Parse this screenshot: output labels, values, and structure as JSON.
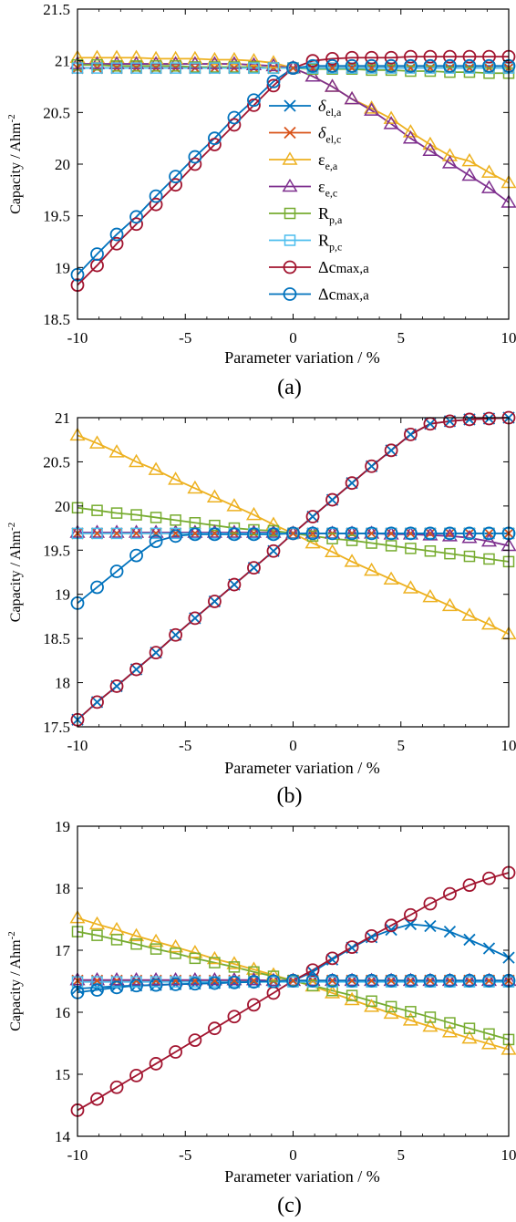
{
  "chart_data": [
    {
      "type": "line",
      "caption": "(a)",
      "xlabel": "Parameter variation / %",
      "ylabel": "Capacity / Ahm",
      "ylabel_sup": "-2",
      "xlim": [
        -10,
        10
      ],
      "ylim": [
        18.5,
        21.5
      ],
      "x_ticks": [
        -10,
        -5,
        0,
        5,
        10
      ],
      "x_tick_labels": [
        "-10",
        "-5",
        "0",
        "5",
        "10"
      ],
      "y_ticks": [
        18.5,
        19,
        19.5,
        20,
        20.5,
        21,
        21.5
      ],
      "y_tick_labels": [
        "18.5",
        "19",
        "19.5",
        "20",
        "20.5",
        "21",
        "21.5"
      ],
      "legend_position": "center",
      "x": [
        -10,
        -9.09,
        -8.18,
        -7.27,
        -6.36,
        -5.45,
        -4.55,
        -3.64,
        -2.73,
        -1.82,
        -0.91,
        0,
        0.91,
        1.82,
        2.73,
        3.64,
        4.55,
        5.45,
        6.36,
        7.27,
        8.18,
        9.09,
        10
      ],
      "series": [
        {
          "name": "δel,a",
          "label_main": "δ",
          "label_sub": "el,a",
          "color": "#0072BD",
          "marker": "x",
          "values": [
            20.93,
            20.93,
            20.93,
            20.93,
            20.93,
            20.93,
            20.93,
            20.93,
            20.93,
            20.93,
            20.93,
            20.93,
            20.93,
            20.93,
            20.93,
            20.93,
            20.93,
            20.93,
            20.93,
            20.93,
            20.93,
            20.93,
            20.93
          ]
        },
        {
          "name": "δel,c",
          "label_main": "δ",
          "label_sub": "el,c",
          "color": "#D95319",
          "marker": "x",
          "values": [
            20.93,
            20.93,
            20.93,
            20.93,
            20.93,
            20.93,
            20.93,
            20.93,
            20.93,
            20.93,
            20.93,
            20.93,
            20.93,
            20.93,
            20.93,
            20.93,
            20.93,
            20.93,
            20.93,
            20.93,
            20.93,
            20.93,
            20.93
          ]
        },
        {
          "name": "εe,a",
          "label_main": "ε",
          "label_sub": "e,a",
          "color": "#EDB120",
          "marker": "triangle",
          "values": [
            21.03,
            21.03,
            21.03,
            21.03,
            21.02,
            21.02,
            21.02,
            21.01,
            21.01,
            21.0,
            20.98,
            20.93,
            20.85,
            20.75,
            20.63,
            20.54,
            20.44,
            20.31,
            20.19,
            20.08,
            20.03,
            19.92,
            19.82
          ]
        },
        {
          "name": "εe,c",
          "label_main": "ε",
          "label_sub": "e,c",
          "color": "#7E2F8E",
          "marker": "triangle",
          "values": [
            20.97,
            20.97,
            20.97,
            20.97,
            20.97,
            20.97,
            20.97,
            20.97,
            20.97,
            20.96,
            20.95,
            20.93,
            20.85,
            20.75,
            20.63,
            20.52,
            20.39,
            20.25,
            20.13,
            20.01,
            19.89,
            19.77,
            19.63
          ]
        },
        {
          "name": "Rp,a",
          "label_main": "R",
          "label_sub": "p,a",
          "color": "#77AC30",
          "marker": "square",
          "values": [
            20.96,
            20.96,
            20.95,
            20.95,
            20.95,
            20.95,
            20.94,
            20.94,
            20.94,
            20.94,
            20.93,
            20.93,
            20.92,
            20.92,
            20.92,
            20.91,
            20.91,
            20.9,
            20.9,
            20.89,
            20.89,
            20.88,
            20.88
          ]
        },
        {
          "name": "Rp,c",
          "label_main": "R",
          "label_sub": "p,c",
          "color": "#4DBEEE",
          "marker": "square",
          "values": [
            20.93,
            20.93,
            20.93,
            20.93,
            20.93,
            20.93,
            20.93,
            20.93,
            20.93,
            20.93,
            20.93,
            20.93,
            20.93,
            20.93,
            20.93,
            20.93,
            20.93,
            20.93,
            20.93,
            20.93,
            20.93,
            20.93,
            20.93
          ]
        },
        {
          "name": "Δcmax,a",
          "label_main": "Δc",
          "label_sub": "max,a",
          "color": "#A2142F",
          "marker": "circle",
          "values": [
            18.83,
            19.02,
            19.23,
            19.42,
            19.61,
            19.8,
            20.0,
            20.19,
            20.38,
            20.57,
            20.76,
            20.93,
            21.0,
            21.02,
            21.03,
            21.03,
            21.03,
            21.04,
            21.04,
            21.04,
            21.04,
            21.04,
            21.04
          ]
        },
        {
          "name": "Δcmax,a",
          "label_main": "Δc",
          "label_sub": "max,a",
          "color": "#0072BD",
          "marker": "circle",
          "values": [
            18.93,
            19.13,
            19.32,
            19.49,
            19.69,
            19.88,
            20.07,
            20.25,
            20.45,
            20.62,
            20.8,
            20.93,
            20.95,
            20.95,
            20.95,
            20.95,
            20.95,
            20.95,
            20.95,
            20.95,
            20.95,
            20.95,
            20.95
          ]
        }
      ]
    },
    {
      "type": "line",
      "caption": "(b)",
      "xlabel": "Parameter variation / %",
      "ylabel": "Capacity / Ahm",
      "ylabel_sup": "-2",
      "xlim": [
        -10,
        10
      ],
      "ylim": [
        17.5,
        21
      ],
      "x_ticks": [
        -10,
        -5,
        0,
        5,
        10
      ],
      "x_tick_labels": [
        "-10",
        "-5",
        "0",
        "5",
        "10"
      ],
      "y_ticks": [
        17.5,
        18,
        18.5,
        19,
        19.5,
        20,
        20.5,
        21
      ],
      "y_tick_labels": [
        "17.5",
        "18",
        "18.5",
        "19",
        "19.5",
        "20",
        "20.5",
        "21"
      ],
      "x": [
        -10,
        -9.09,
        -8.18,
        -7.27,
        -6.36,
        -5.45,
        -4.55,
        -3.64,
        -2.73,
        -1.82,
        -0.91,
        0,
        0.91,
        1.82,
        2.73,
        3.64,
        4.55,
        5.45,
        6.36,
        7.27,
        8.18,
        9.09,
        10
      ],
      "series": [
        {
          "name": "δel,a",
          "color": "#0072BD",
          "marker": "x",
          "values": [
            17.58,
            17.78,
            17.96,
            18.15,
            18.34,
            18.54,
            18.73,
            18.92,
            19.11,
            19.3,
            19.49,
            19.69,
            19.88,
            20.07,
            20.26,
            20.45,
            20.63,
            20.81,
            20.93,
            20.96,
            20.98,
            20.99,
            21.0
          ]
        },
        {
          "name": "δel,c",
          "color": "#D95319",
          "marker": "x",
          "values": [
            19.69,
            19.69,
            19.69,
            19.69,
            19.69,
            19.69,
            19.69,
            19.69,
            19.69,
            19.69,
            19.69,
            19.69,
            19.69,
            19.69,
            19.69,
            19.69,
            19.69,
            19.69,
            19.69,
            19.69,
            19.69,
            19.69,
            19.69
          ]
        },
        {
          "name": "εe,a",
          "color": "#EDB120",
          "marker": "triangle",
          "values": [
            20.8,
            20.71,
            20.61,
            20.5,
            20.41,
            20.3,
            20.2,
            20.1,
            20.0,
            19.9,
            19.79,
            19.69,
            19.58,
            19.48,
            19.37,
            19.27,
            19.17,
            19.07,
            18.97,
            18.87,
            18.76,
            18.66,
            18.55
          ]
        },
        {
          "name": "εe,c",
          "color": "#7E2F8E",
          "marker": "triangle",
          "values": [
            19.7,
            19.7,
            19.7,
            19.7,
            19.7,
            19.7,
            19.7,
            19.7,
            19.7,
            19.7,
            19.7,
            19.69,
            19.69,
            19.69,
            19.69,
            19.69,
            19.68,
            19.68,
            19.67,
            19.66,
            19.64,
            19.6,
            19.55
          ]
        },
        {
          "name": "Rp,a",
          "color": "#77AC30",
          "marker": "square",
          "values": [
            19.98,
            19.95,
            19.92,
            19.9,
            19.87,
            19.84,
            19.81,
            19.78,
            19.75,
            19.73,
            19.72,
            19.69,
            19.66,
            19.63,
            19.61,
            19.58,
            19.55,
            19.52,
            19.49,
            19.46,
            19.43,
            19.4,
            19.37
          ]
        },
        {
          "name": "Rp,c",
          "color": "#4DBEEE",
          "marker": "square",
          "values": [
            19.69,
            19.69,
            19.69,
            19.69,
            19.69,
            19.69,
            19.69,
            19.69,
            19.69,
            19.69,
            19.69,
            19.69,
            19.69,
            19.69,
            19.69,
            19.69,
            19.69,
            19.69,
            19.69,
            19.69,
            19.69,
            19.69,
            19.69
          ]
        },
        {
          "name": "Δcmax,a",
          "color": "#A2142F",
          "marker": "circle",
          "values": [
            17.58,
            17.78,
            17.96,
            18.15,
            18.34,
            18.54,
            18.73,
            18.92,
            19.11,
            19.3,
            19.49,
            19.69,
            19.88,
            20.07,
            20.26,
            20.45,
            20.63,
            20.81,
            20.93,
            20.96,
            20.98,
            20.99,
            21.0
          ]
        },
        {
          "name": "Δcmax,a",
          "color": "#0072BD",
          "marker": "circle",
          "values": [
            18.9,
            19.08,
            19.26,
            19.44,
            19.6,
            19.66,
            19.68,
            19.68,
            19.68,
            19.68,
            19.68,
            19.69,
            19.69,
            19.69,
            19.69,
            19.69,
            19.69,
            19.69,
            19.69,
            19.69,
            19.69,
            19.69,
            19.69
          ]
        }
      ]
    },
    {
      "type": "line",
      "caption": "(c)",
      "xlabel": "Parameter variation / %",
      "ylabel": "Capacity / Ahm",
      "ylabel_sup": "-2",
      "xlim": [
        -10,
        10
      ],
      "ylim": [
        14,
        19
      ],
      "x_ticks": [
        -10,
        -5,
        0,
        5,
        10
      ],
      "x_tick_labels": [
        "-10",
        "-5",
        "0",
        "5",
        "10"
      ],
      "y_ticks": [
        14,
        15,
        16,
        17,
        18,
        19
      ],
      "y_tick_labels": [
        "14",
        "15",
        "16",
        "17",
        "18",
        "19"
      ],
      "x": [
        -10,
        -9.09,
        -8.18,
        -7.27,
        -6.36,
        -5.45,
        -4.55,
        -3.64,
        -2.73,
        -1.82,
        -0.91,
        0,
        0.91,
        1.82,
        2.73,
        3.64,
        4.55,
        5.45,
        6.36,
        7.27,
        8.18,
        9.09,
        10
      ],
      "series": [
        {
          "name": "δel,a",
          "color": "#0072BD",
          "marker": "x",
          "values": [
            16.38,
            16.4,
            16.42,
            16.43,
            16.44,
            16.45,
            16.46,
            16.47,
            16.48,
            16.49,
            16.5,
            16.51,
            16.65,
            16.85,
            17.04,
            17.21,
            17.33,
            17.42,
            17.39,
            17.3,
            17.17,
            17.03,
            16.88
          ]
        },
        {
          "name": "δel,c",
          "color": "#D95319",
          "marker": "x",
          "values": [
            16.51,
            16.51,
            16.51,
            16.51,
            16.51,
            16.51,
            16.51,
            16.51,
            16.51,
            16.51,
            16.51,
            16.51,
            16.51,
            16.51,
            16.51,
            16.51,
            16.51,
            16.51,
            16.51,
            16.51,
            16.51,
            16.51,
            16.51
          ]
        },
        {
          "name": "εe,a",
          "color": "#EDB120",
          "marker": "triangle",
          "values": [
            17.52,
            17.42,
            17.33,
            17.23,
            17.14,
            17.05,
            16.96,
            16.86,
            16.78,
            16.69,
            16.6,
            16.51,
            16.42,
            16.31,
            16.2,
            16.09,
            15.98,
            15.87,
            15.77,
            15.68,
            15.58,
            15.49,
            15.4
          ]
        },
        {
          "name": "εe,c",
          "color": "#7E2F8E",
          "marker": "triangle",
          "values": [
            16.52,
            16.52,
            16.52,
            16.52,
            16.52,
            16.52,
            16.52,
            16.52,
            16.52,
            16.52,
            16.51,
            16.51,
            16.51,
            16.51,
            16.51,
            16.51,
            16.51,
            16.51,
            16.51,
            16.51,
            16.51,
            16.51,
            16.51
          ]
        },
        {
          "name": "Rp,a",
          "color": "#77AC30",
          "marker": "square",
          "values": [
            17.3,
            17.24,
            17.17,
            17.1,
            17.02,
            16.95,
            16.87,
            16.8,
            16.73,
            16.65,
            16.58,
            16.51,
            16.43,
            16.35,
            16.27,
            16.18,
            16.09,
            16.01,
            15.92,
            15.83,
            15.74,
            15.65,
            15.56
          ]
        },
        {
          "name": "Rp,c",
          "color": "#4DBEEE",
          "marker": "square",
          "values": [
            16.49,
            16.49,
            16.49,
            16.49,
            16.49,
            16.49,
            16.49,
            16.49,
            16.49,
            16.49,
            16.49,
            16.49,
            16.49,
            16.49,
            16.49,
            16.49,
            16.49,
            16.49,
            16.49,
            16.49,
            16.49,
            16.49,
            16.49
          ]
        },
        {
          "name": "Δcmax,a",
          "color": "#A2142F",
          "marker": "circle",
          "values": [
            14.42,
            14.6,
            14.79,
            14.98,
            15.17,
            15.36,
            15.55,
            15.74,
            15.93,
            16.12,
            16.31,
            16.51,
            16.68,
            16.87,
            17.05,
            17.23,
            17.4,
            17.57,
            17.75,
            17.91,
            18.05,
            18.16,
            18.25
          ]
        },
        {
          "name": "Δcmax,a",
          "color": "#0072BD",
          "marker": "circle",
          "values": [
            16.32,
            16.36,
            16.4,
            16.43,
            16.44,
            16.45,
            16.46,
            16.47,
            16.48,
            16.49,
            16.5,
            16.51,
            16.51,
            16.51,
            16.51,
            16.51,
            16.51,
            16.51,
            16.51,
            16.51,
            16.51,
            16.51,
            16.51
          ]
        }
      ]
    }
  ]
}
